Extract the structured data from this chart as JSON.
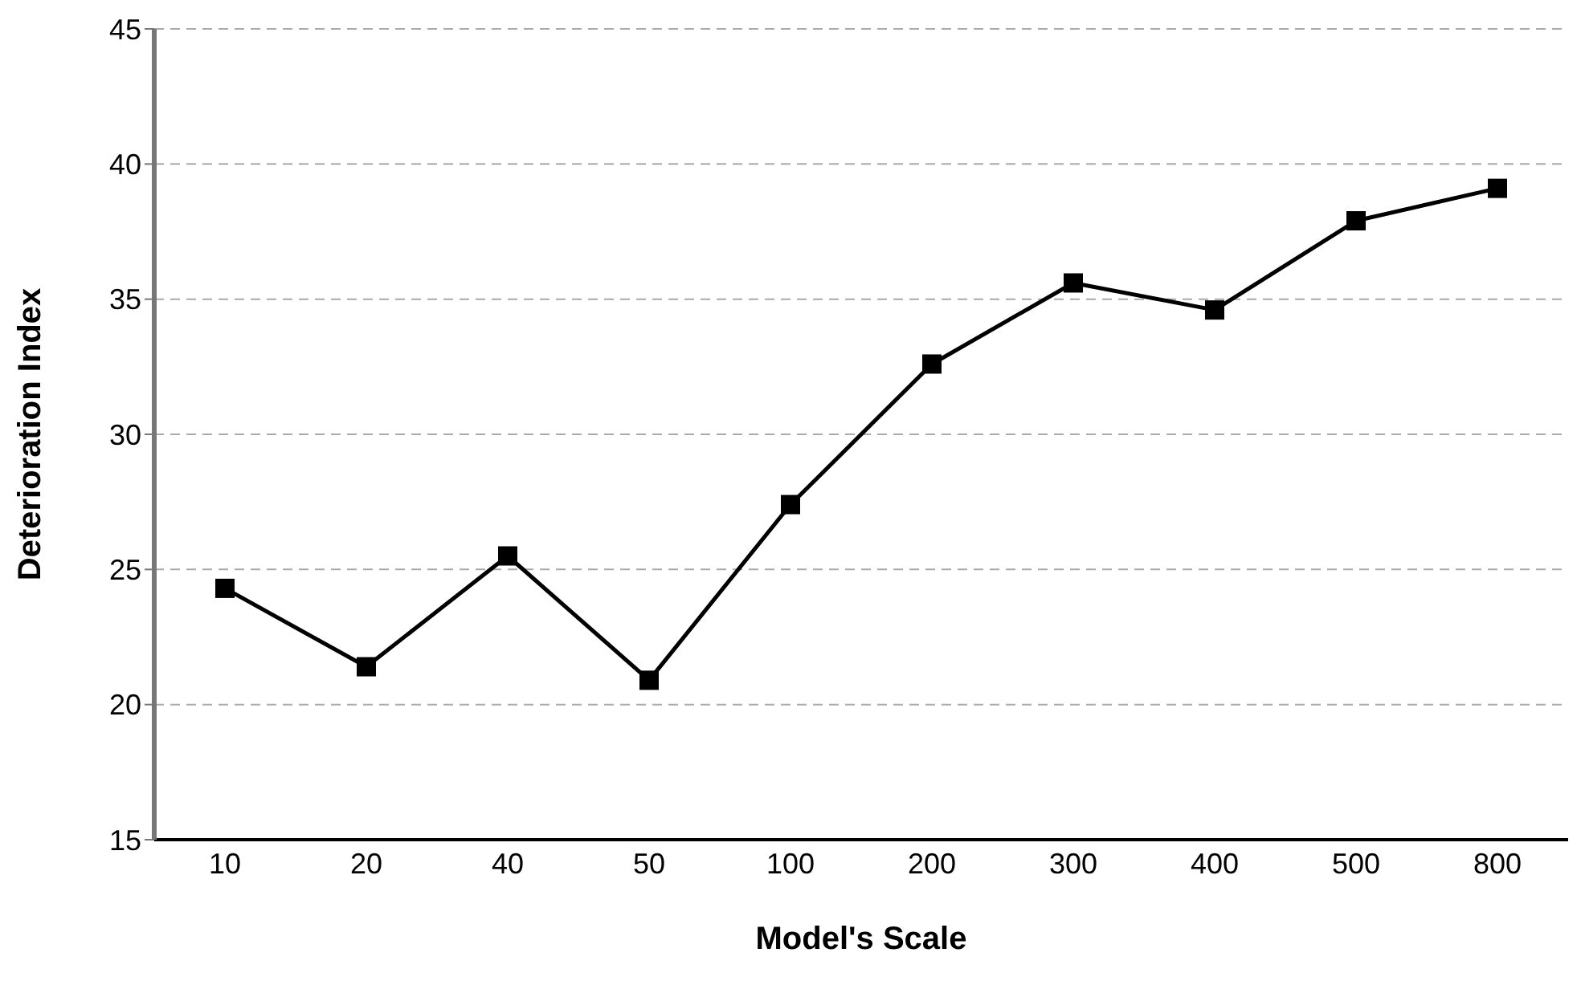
{
  "chart_data": {
    "type": "line",
    "xlabel": "Model's Scale",
    "ylabel": "Deterioration Index",
    "categories": [
      "10",
      "20",
      "40",
      "50",
      "100",
      "200",
      "300",
      "400",
      "500",
      "800"
    ],
    "series": [
      {
        "color": "#000000",
        "values": [
          24.3,
          21.4,
          25.5,
          20.9,
          27.4,
          32.6,
          35.6,
          34.6,
          37.9,
          39.1
        ]
      }
    ],
    "ylim": [
      15,
      45
    ],
    "yticks": [
      15,
      20,
      25,
      30,
      35,
      40,
      45
    ],
    "grid": "y",
    "marker": "square",
    "line_style": "solid"
  }
}
